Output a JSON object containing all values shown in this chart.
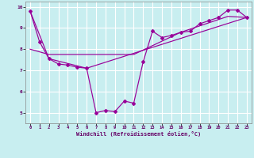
{
  "xlabel": "Windchill (Refroidissement éolien,°C)",
  "bg_color": "#c8eef0",
  "line_color": "#990099",
  "grid_color": "#ffffff",
  "xlim_min": -0.5,
  "xlim_max": 23.5,
  "ylim_min": 4.5,
  "ylim_max": 10.25,
  "yticks": [
    5,
    6,
    7,
    8,
    9,
    10
  ],
  "xticks": [
    0,
    1,
    2,
    3,
    4,
    5,
    6,
    7,
    8,
    9,
    10,
    11,
    12,
    13,
    14,
    15,
    16,
    17,
    18,
    19,
    20,
    21,
    22,
    23
  ],
  "line1_x": [
    0,
    1,
    2,
    3,
    4,
    5,
    6,
    7,
    8,
    9,
    10,
    11,
    12,
    13,
    14,
    15,
    16,
    17,
    18,
    19,
    20,
    21,
    22,
    23
  ],
  "line1_y": [
    9.8,
    8.35,
    7.55,
    7.3,
    7.25,
    7.15,
    7.1,
    5.0,
    5.1,
    5.05,
    5.55,
    5.45,
    7.4,
    8.85,
    8.55,
    8.65,
    8.8,
    8.85,
    9.2,
    9.35,
    9.5,
    9.85,
    9.85,
    9.5
  ],
  "line2_x": [
    0,
    2,
    6,
    23
  ],
  "line2_y": [
    9.8,
    7.55,
    7.1,
    9.5
  ],
  "line3_x": [
    0,
    2,
    6,
    11,
    16,
    21,
    23
  ],
  "line3_y": [
    8.0,
    7.75,
    7.75,
    7.75,
    8.8,
    9.55,
    9.5
  ]
}
